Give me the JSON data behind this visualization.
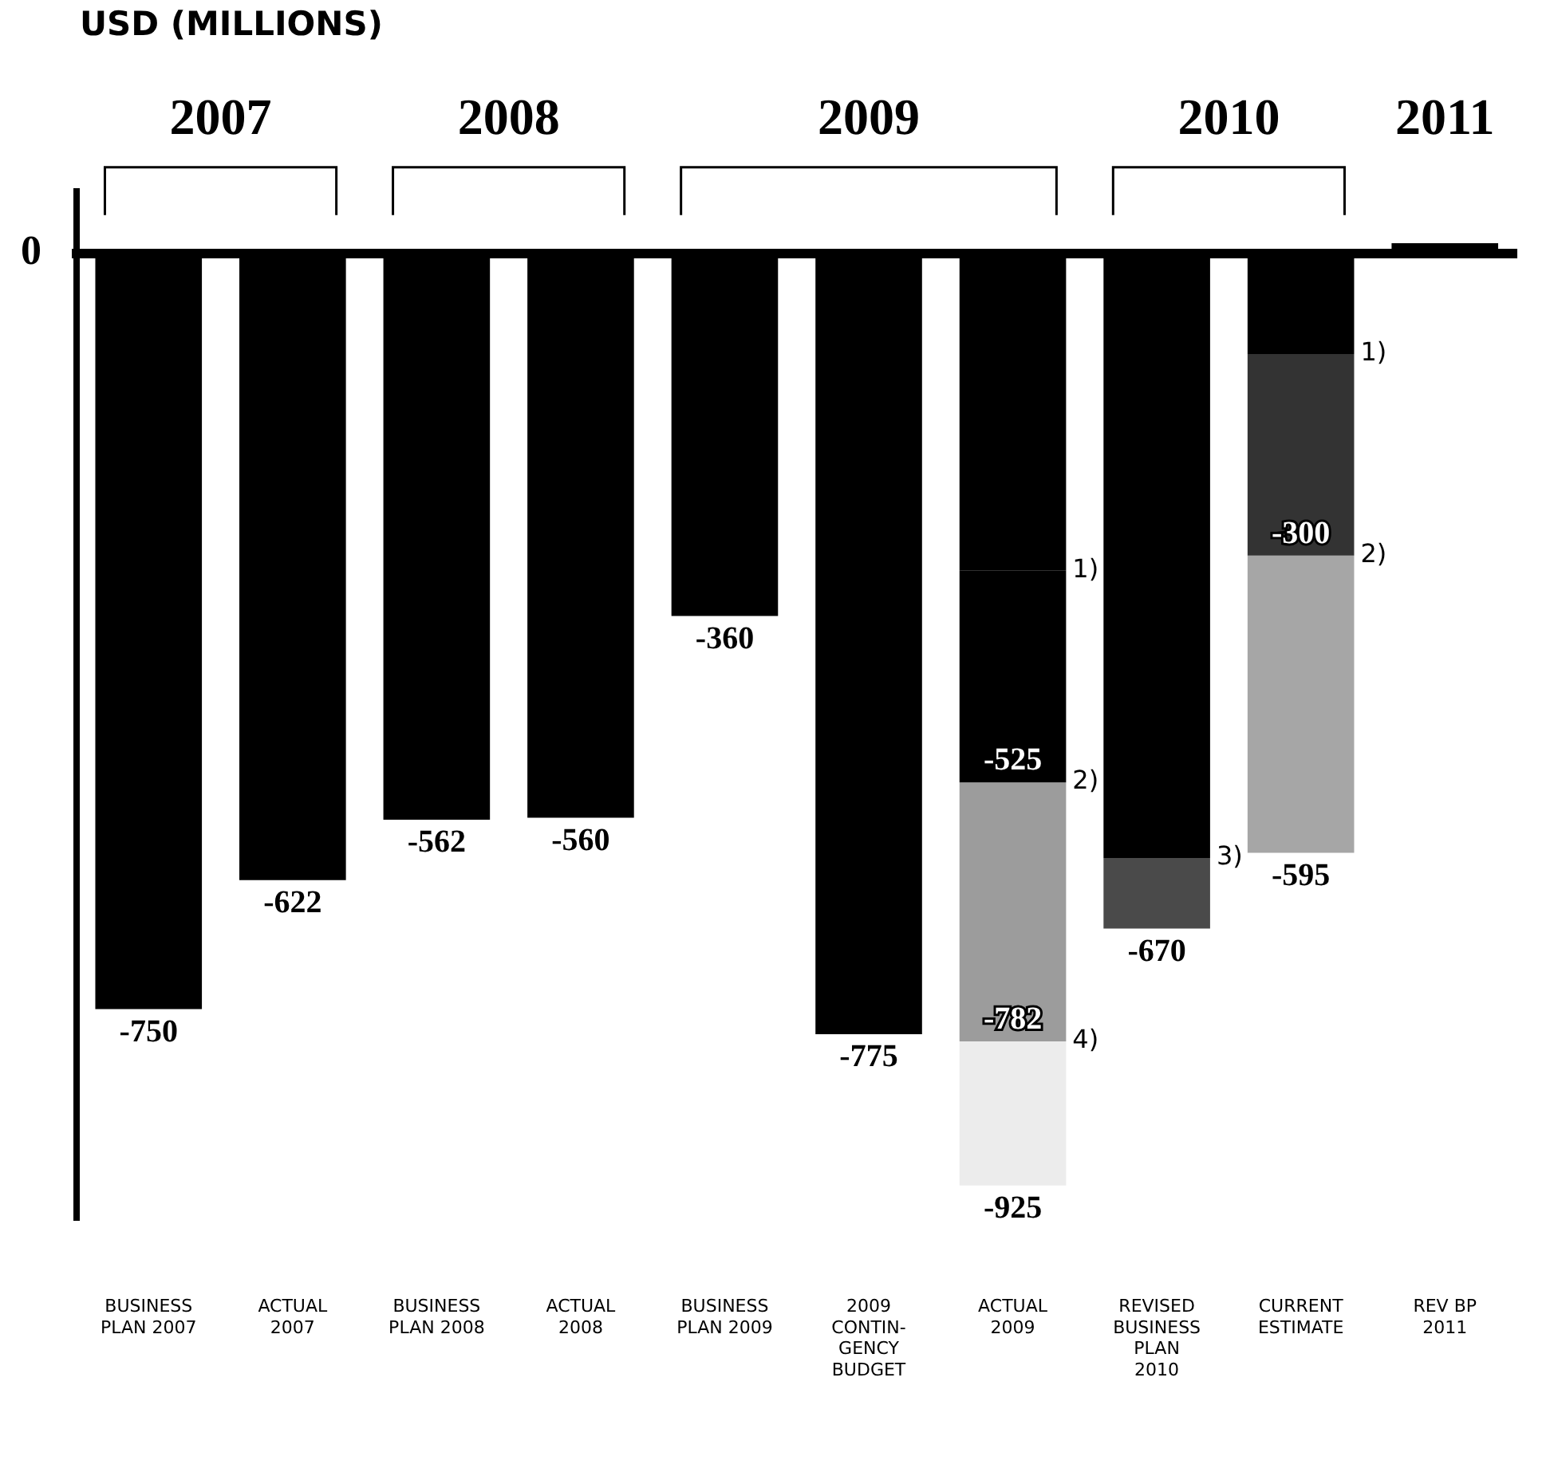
{
  "chart_data": {
    "type": "bar",
    "stacked": true,
    "categories": [
      "BUSINESS\nPLAN 2007",
      "ACTUAL\n2007",
      "BUSINESS\nPLAN 2008",
      "ACTUAL\n2008",
      "BUSINESS\nPLAN 2009",
      "2009\nCONTIN-\nGENCY\nBUDGET",
      "ACTUAL\n2009",
      "REVISED\nBUSINESS\nPLAN\n2010",
      "CURRENT\nESTIMATE",
      "REV BP\n2011"
    ],
    "series": [
      {
        "color": "#000000",
        "values": [
          -750,
          -622,
          -562,
          -560,
          -360,
          -775,
          -315,
          -600,
          -100,
          10
        ],
        "value_labels": [
          "-750",
          "-622",
          "-562",
          "-560",
          "-360",
          "-775",
          null,
          null,
          null,
          null
        ]
      },
      {
        "colors": [
          "#000000",
          "#000000",
          "#000000",
          "#000000",
          "#000000",
          "#000000",
          "#000000",
          "#000000",
          "#333333",
          "#000000"
        ],
        "values": [
          null,
          null,
          null,
          null,
          null,
          null,
          -210,
          null,
          -200,
          null
        ]
      },
      {
        "colors": [
          "#9c9c9c",
          "#9c9c9c",
          "#9c9c9c",
          "#9c9c9c",
          "#9c9c9c",
          "#9c9c9c",
          "#9c9c9c",
          "#4a4a4a",
          "#a6a6a6",
          "#9c9c9c"
        ],
        "values": [
          null,
          null,
          null,
          null,
          null,
          null,
          -257,
          -70,
          -295,
          null
        ]
      },
      {
        "colors": [
          "#ececec",
          "#ececec",
          "#ececec",
          "#ececec",
          "#ececec",
          "#ececec",
          "#ececec",
          "#ececec",
          "#ececec",
          "#ececec"
        ],
        "values": [
          null,
          null,
          null,
          null,
          null,
          null,
          -143,
          null,
          null,
          null
        ]
      }
    ],
    "totals": [
      null,
      null,
      null,
      null,
      null,
      null,
      "-925",
      "-670",
      "-595",
      null
    ],
    "grid": false,
    "legend": false,
    "annotations": [
      "USD (MILLIONS)",
      "2007",
      "2008",
      "2009",
      "2010",
      "2011",
      "0",
      {
        "text": "-525",
        "x": "ACTUAL\n2009",
        "y": -525
      },
      {
        "text": "-782",
        "x": "ACTUAL\n2009",
        "y": -782
      },
      {
        "text": "-300",
        "x": "CURRENT\nESTIMATE",
        "y": -300
      },
      {
        "text": "1)",
        "x": "ACTUAL\n2009",
        "y": -315
      },
      {
        "text": "2)",
        "x": "ACTUAL\n2009",
        "y": -525
      },
      {
        "text": "4)",
        "x": "ACTUAL\n2009",
        "y": -782
      },
      {
        "text": "3)",
        "x": "REVISED\nBUSINESS\nPLAN\n2010",
        "y": -600
      },
      {
        "text": "1)",
        "x": "CURRENT\nESTIMATE",
        "y": -100
      },
      {
        "text": "2)",
        "x": "CURRENT\nESTIMATE",
        "y": -300
      }
    ]
  }
}
